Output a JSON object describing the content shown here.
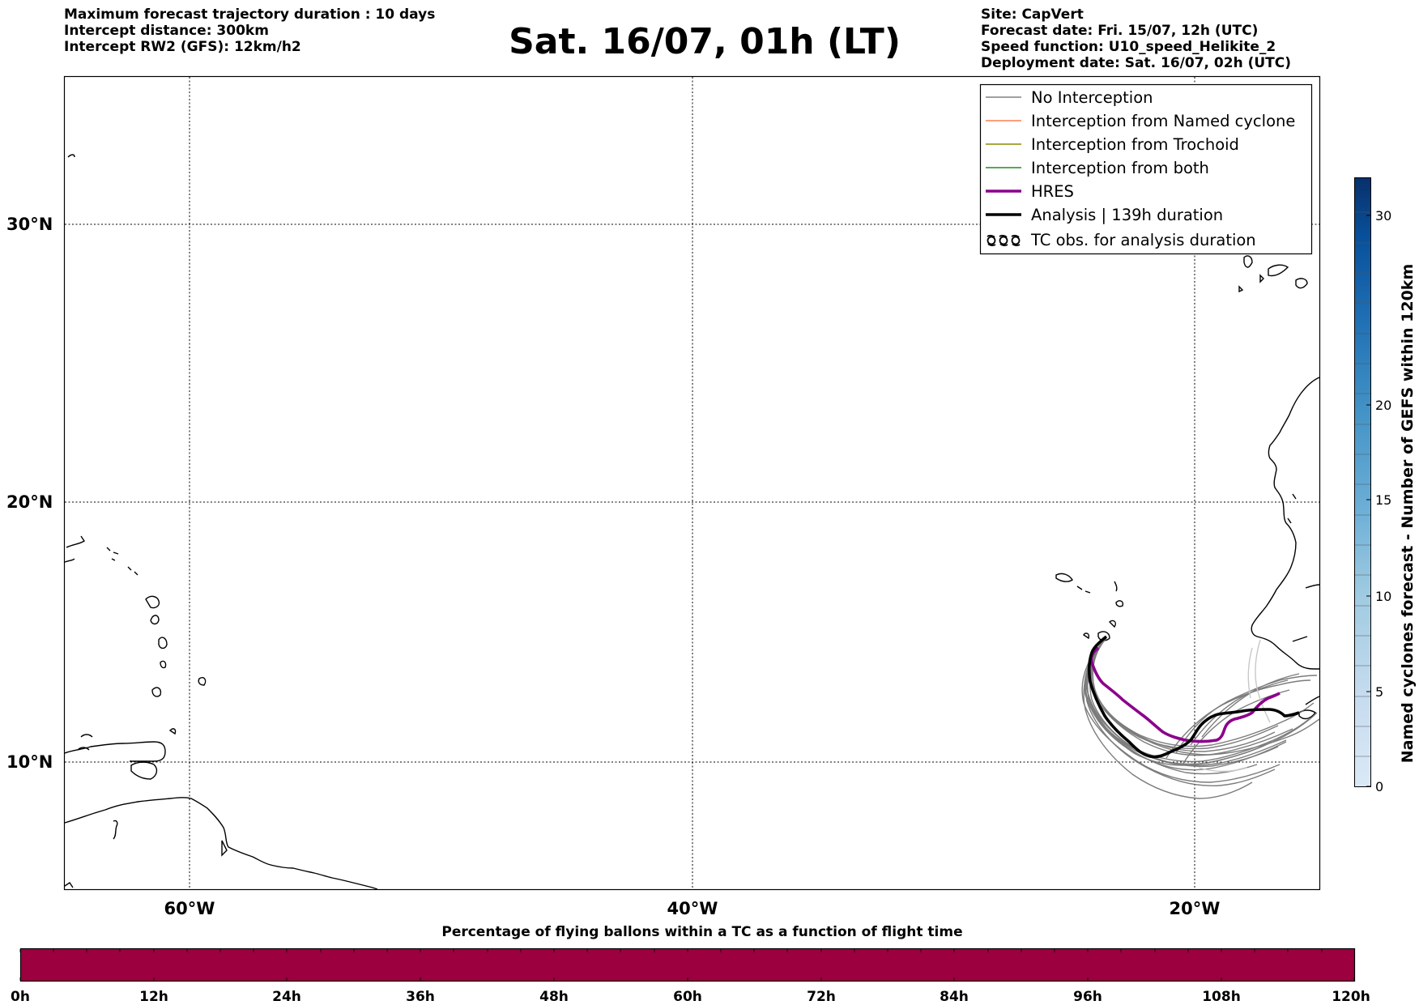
{
  "header": {
    "left_lines": [
      "Maximum forecast trajectory duration : 10 days",
      "Intercept distance: 300km",
      "Intercept RW2 (GFS):  12km/h2"
    ],
    "title": "Sat. 16/07, 01h (LT)",
    "right_lines": [
      "Site: CapVert",
      "Forecast date: Fri. 15/07, 12h (UTC)",
      "Speed function: U10_speed_Helikite_2",
      "Deployment date: Sat. 16/07, 02h (UTC)"
    ]
  },
  "map": {
    "lat_labels": [
      "30°N",
      "20°N",
      "10°N"
    ],
    "lon_labels": [
      "60°W",
      "40°W",
      "20°W"
    ],
    "gridlines": "dotted",
    "legend": [
      {
        "label": "No Interception",
        "color": "#808080",
        "style": "thin-line"
      },
      {
        "label": "Interception from Named cyclone",
        "color": "#ff7f50",
        "style": "thin-line"
      },
      {
        "label": "Interception from Trochoid",
        "color": "#8b8b00",
        "style": "thin-line"
      },
      {
        "label": "Interception from both",
        "color": "#228b22",
        "style": "thin-line"
      },
      {
        "label": "HRES",
        "color": "#8b008b",
        "style": "thick-line"
      },
      {
        "label": "Analysis | 139h duration",
        "color": "#000000",
        "style": "thick-line"
      },
      {
        "label": "TC obs. for analysis duration",
        "color": "#000000",
        "style": "cyclone-symbols"
      }
    ]
  },
  "colorbar": {
    "label": "Named cyclones forecast - Number of GEFS within 120km",
    "ticks": [
      "0",
      "5",
      "10",
      "15",
      "20",
      "30"
    ]
  },
  "bottom_bar": {
    "title": "Percentage of flying ballons within a TC as a function of flight time",
    "ticks": [
      "0h",
      "12h",
      "24h",
      "36h",
      "48h",
      "60h",
      "72h",
      "84h",
      "96h",
      "108h",
      "120h"
    ],
    "fill_color": "#9c003e"
  }
}
